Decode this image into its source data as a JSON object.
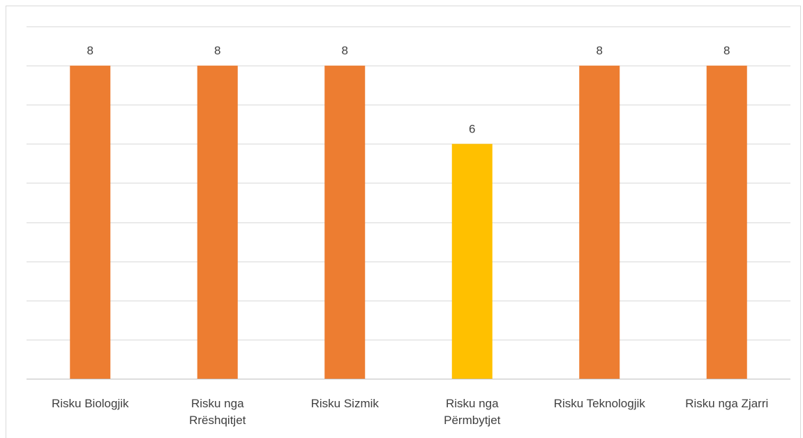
{
  "chart_data": {
    "type": "bar",
    "categories": [
      [
        "Risku Biologjik"
      ],
      [
        "Risku nga",
        "Rrëshqitjet"
      ],
      [
        "Risku Sizmik"
      ],
      [
        "Risku nga",
        "Përmbytjet"
      ],
      [
        "Risku Teknologjik"
      ],
      [
        "Risku nga Zjarri"
      ]
    ],
    "values": [
      8,
      8,
      8,
      6,
      8,
      8
    ],
    "bar_colors": [
      "#ED7D31",
      "#ED7D31",
      "#ED7D31",
      "#FFC000",
      "#ED7D31",
      "#ED7D31"
    ],
    "ylim": [
      0,
      9
    ],
    "grid": true,
    "data_labels": true,
    "title": "",
    "xlabel": "",
    "ylabel": ""
  }
}
